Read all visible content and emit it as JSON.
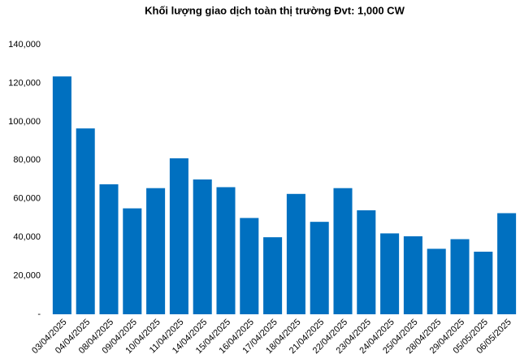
{
  "chart_data": {
    "type": "bar",
    "title": "Khối lượng giao dịch toàn thị trường Đvt: 1,000 CW",
    "categories": [
      "03/04/2025",
      "04/04/2025",
      "08/04/2025",
      "09/04/2025",
      "10/04/2025",
      "11/04/2025",
      "14/04/2025",
      "15/04/2025",
      "16/04/2025",
      "17/04/2025",
      "18/04/2025",
      "21/04/2025",
      "22/04/2025",
      "23/04/2025",
      "24/04/2025",
      "25/04/2025",
      "28/04/2025",
      "29/04/2025",
      "05/05/2025",
      "06/05/2025"
    ],
    "values": [
      123500,
      96500,
      67500,
      55000,
      65500,
      81000,
      70000,
      66000,
      50000,
      40000,
      62500,
      48000,
      65500,
      54000,
      42000,
      40500,
      34000,
      39000,
      32500,
      52500
    ],
    "color": "#0070c0",
    "ylim": [
      0,
      140000
    ],
    "yticks": [
      {
        "value": 0,
        "label": "-"
      },
      {
        "value": 20000,
        "label": "20,000"
      },
      {
        "value": 40000,
        "label": "40,000"
      },
      {
        "value": 60000,
        "label": "60,000"
      },
      {
        "value": 80000,
        "label": "80,000"
      },
      {
        "value": 100000,
        "label": "100,000"
      },
      {
        "value": 120000,
        "label": "120,000"
      },
      {
        "value": 140000,
        "label": "140,000"
      }
    ],
    "grid": false
  }
}
